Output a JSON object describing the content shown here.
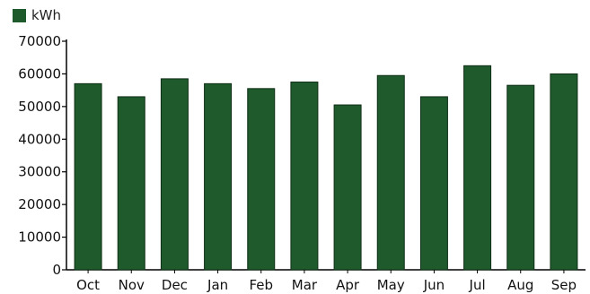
{
  "chart_data": {
    "type": "bar",
    "title": "",
    "xlabel": "",
    "ylabel": "",
    "categories": [
      "Oct",
      "Nov",
      "Dec",
      "Jan",
      "Feb",
      "Mar",
      "Apr",
      "May",
      "Jun",
      "Jul",
      "Aug",
      "Sep"
    ],
    "series": [
      {
        "name": "kWh",
        "values": [
          57000,
          53000,
          58500,
          57000,
          55500,
          57500,
          50500,
          59500,
          53000,
          62500,
          56500,
          60000
        ]
      }
    ],
    "ylim": [
      0,
      70000
    ],
    "yticks": [
      "0",
      "10000",
      "20000",
      "30000",
      "40000",
      "50000",
      "60000",
      "70000"
    ],
    "grid": false,
    "legend_position": "top-left",
    "colors": {
      "bar": "#1e5a2c",
      "bar_edge": "#0f2e16",
      "axis": "#000000"
    }
  }
}
